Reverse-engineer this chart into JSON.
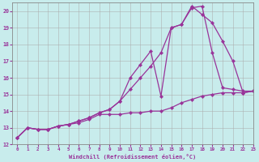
{
  "xlabel": "Windchill (Refroidissement éolien,°C)",
  "background_color": "#c8ecec",
  "grid_color": "#aaaaaa",
  "line_color": "#993399",
  "xlim": [
    -0.5,
    23
  ],
  "ylim": [
    12,
    20.5
  ],
  "xticks": [
    0,
    1,
    2,
    3,
    4,
    5,
    6,
    7,
    8,
    9,
    10,
    11,
    12,
    13,
    14,
    15,
    16,
    17,
    18,
    19,
    20,
    21,
    22,
    23
  ],
  "yticks": [
    12,
    13,
    14,
    15,
    16,
    17,
    18,
    19,
    20
  ],
  "curve1_x": [
    0,
    1,
    2,
    3,
    4,
    5,
    6,
    7,
    8,
    9,
    10,
    11,
    12,
    13,
    14,
    15,
    16,
    17,
    18,
    19,
    20,
    21,
    22,
    23
  ],
  "curve1_y": [
    12.4,
    13.0,
    12.9,
    12.9,
    13.1,
    13.2,
    13.3,
    13.5,
    13.8,
    13.8,
    13.8,
    13.9,
    13.9,
    14.0,
    14.0,
    14.2,
    14.5,
    14.7,
    14.9,
    15.0,
    15.1,
    15.1,
    15.1,
    15.2
  ],
  "curve2_x": [
    0,
    1,
    2,
    3,
    4,
    5,
    6,
    7,
    8,
    9,
    10,
    11,
    12,
    13,
    14,
    15,
    16,
    17,
    18,
    19,
    20,
    21,
    22,
    23
  ],
  "curve2_y": [
    12.4,
    13.0,
    12.9,
    12.9,
    13.1,
    13.2,
    13.4,
    13.6,
    13.9,
    14.1,
    14.6,
    15.3,
    16.0,
    16.7,
    17.5,
    19.0,
    19.2,
    20.3,
    19.8,
    19.3,
    18.2,
    17.0,
    15.1,
    15.2
  ],
  "curve3_x": [
    0,
    1,
    2,
    3,
    4,
    5,
    6,
    7,
    8,
    9,
    10,
    11,
    12,
    13,
    14,
    15,
    16,
    17,
    18,
    19,
    20,
    21,
    22,
    23
  ],
  "curve3_y": [
    12.4,
    13.0,
    12.9,
    12.9,
    13.1,
    13.2,
    13.4,
    13.6,
    13.9,
    14.1,
    14.6,
    16.0,
    16.8,
    17.6,
    14.9,
    19.0,
    19.2,
    20.2,
    20.3,
    17.5,
    15.4,
    15.3,
    15.2,
    15.2
  ]
}
